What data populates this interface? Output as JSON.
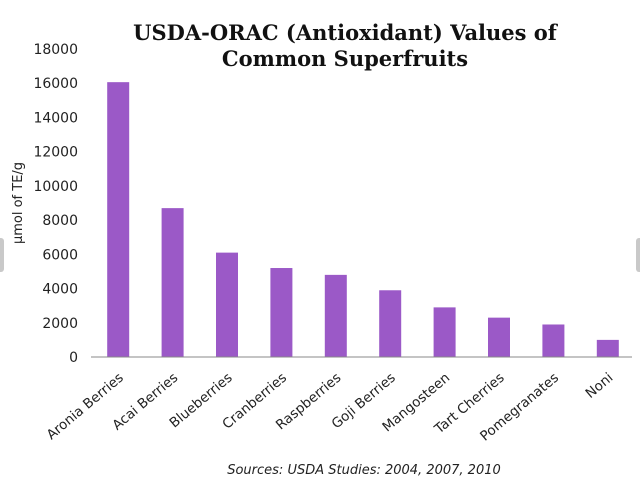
{
  "chart_data": {
    "type": "bar",
    "title": [
      "USDA-ORAC (Antioxidant) Values of",
      "Common Superfruits"
    ],
    "ylabel": "µmol of TE/g",
    "xlabel": "",
    "ylim": [
      0,
      18000
    ],
    "yticks": [
      0,
      2000,
      4000,
      6000,
      8000,
      10000,
      12000,
      14000,
      16000,
      18000
    ],
    "categories": [
      "Aronia Berries",
      "Acai Berries",
      "Blueberries",
      "Cranberries",
      "Raspberries",
      "Goji Berries",
      "Mangosteen",
      "Tart Cherries",
      "Pomegranates",
      "Noni"
    ],
    "values": [
      16062,
      8700,
      6100,
      5200,
      4800,
      3900,
      2900,
      2300,
      1900,
      1000
    ],
    "bar_color": "#9b59c7",
    "grid": false,
    "source": "Sources: USDA Studies: 2004, 2007, 2010"
  }
}
